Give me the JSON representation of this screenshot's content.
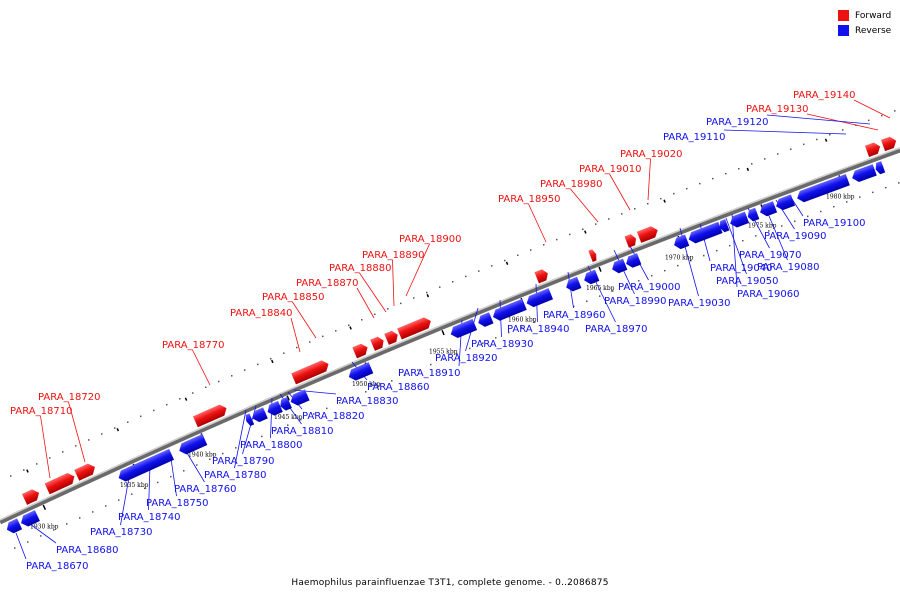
{
  "caption": "Haemophilus parainfluenzae T3T1, complete genome. - 0..2086875",
  "legend": {
    "forward_label": "Forward",
    "reverse_label": "Reverse",
    "forward_color": "#ee1111",
    "reverse_color": "#1111ee"
  },
  "tick_labels": [
    "1930 kbp",
    "1935 kbp",
    "1940 kbp",
    "1945 kbp",
    "1950 kbp",
    "1955 kbp",
    "1960 kbp",
    "1965 kbp",
    "1970 kbp",
    "1975 kbp",
    "1980 kbp"
  ],
  "forward_genes": [
    "PARA_18710",
    "PARA_18720",
    "PARA_18770",
    "PARA_18840",
    "PARA_18850",
    "PARA_18870",
    "PARA_18880",
    "PARA_18890",
    "PARA_18900",
    "PARA_18950",
    "PARA_18980",
    "PARA_19010",
    "PARA_19020",
    "PARA_19130",
    "PARA_19140"
  ],
  "reverse_genes": [
    "PARA_18670",
    "PARA_18680",
    "PARA_18730",
    "PARA_18740",
    "PARA_18750",
    "PARA_18760",
    "PARA_18780",
    "PARA_18790",
    "PARA_18800",
    "PARA_18810",
    "PARA_18820",
    "PARA_18830",
    "PARA_18860",
    "PARA_18910",
    "PARA_18920",
    "PARA_18930",
    "PARA_18940",
    "PARA_18960",
    "PARA_18970",
    "PARA_18990",
    "PARA_19000",
    "PARA_19030",
    "PARA_19040",
    "PARA_19050",
    "PARA_19060",
    "PARA_19070",
    "PARA_19080",
    "PARA_19090",
    "PARA_19100",
    "PARA_19110",
    "PARA_19120"
  ]
}
